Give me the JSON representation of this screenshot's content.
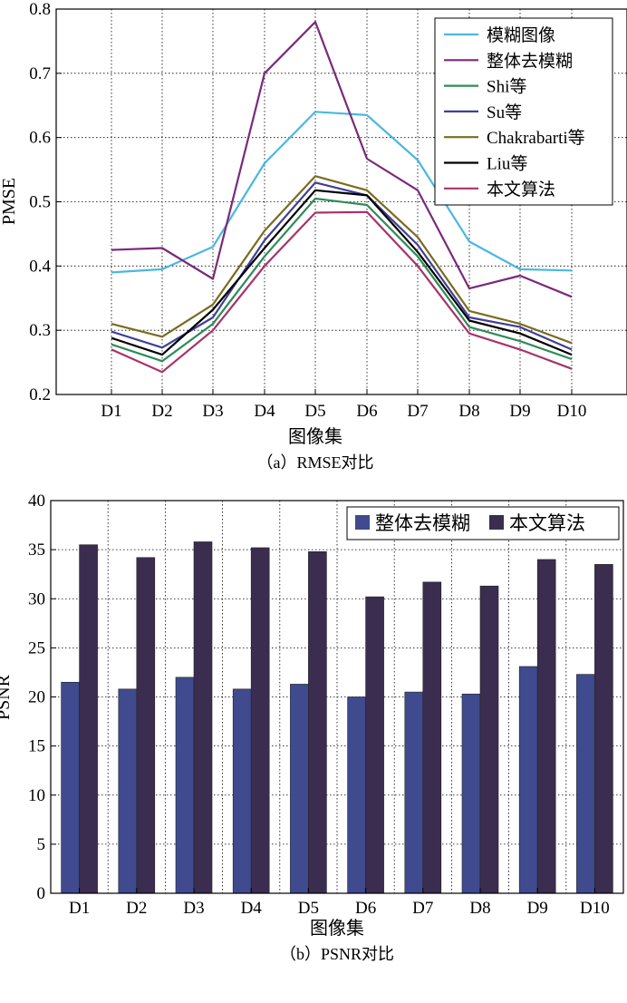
{
  "chart_data": [
    {
      "type": "line",
      "panel_label": "（a）RMSE对比",
      "xlabel": "图像集",
      "ylabel": "PMSE",
      "ylim": [
        0.2,
        0.8
      ],
      "yticks": [
        "0.2",
        "0.3",
        "0.4",
        "0.5",
        "0.6",
        "0.7",
        "0.8"
      ],
      "categories": [
        "D1",
        "D2",
        "D3",
        "D4",
        "D5",
        "D6",
        "D7",
        "D8",
        "D9",
        "D10"
      ],
      "grid": true,
      "legend_position": "top-right",
      "series": [
        {
          "name": "模糊图像",
          "color": "#4ab8e0",
          "values": [
            0.39,
            0.395,
            0.43,
            0.56,
            0.64,
            0.635,
            0.565,
            0.438,
            0.395,
            0.393
          ]
        },
        {
          "name": "整体去模糊",
          "color": "#7a2a7a",
          "values": [
            0.425,
            0.428,
            0.38,
            0.7,
            0.78,
            0.567,
            0.518,
            0.365,
            0.385,
            0.352
          ]
        },
        {
          "name": "Shi等",
          "color": "#2e8b57",
          "values": [
            0.278,
            0.252,
            0.31,
            0.415,
            0.505,
            0.495,
            0.415,
            0.305,
            0.283,
            0.255
          ]
        },
        {
          "name": "Su等",
          "color": "#3f3f9a",
          "values": [
            0.298,
            0.273,
            0.32,
            0.44,
            0.53,
            0.51,
            0.433,
            0.32,
            0.305,
            0.27
          ]
        },
        {
          "name": "Chakrabarti等",
          "color": "#7a6b1e",
          "values": [
            0.31,
            0.29,
            0.34,
            0.455,
            0.54,
            0.518,
            0.445,
            0.33,
            0.31,
            0.28
          ]
        },
        {
          "name": "Liu等",
          "color": "#000000",
          "values": [
            0.288,
            0.262,
            0.332,
            0.428,
            0.518,
            0.51,
            0.422,
            0.315,
            0.295,
            0.262
          ]
        },
        {
          "name": "本文算法",
          "color": "#a8326a",
          "values": [
            0.27,
            0.235,
            0.3,
            0.4,
            0.483,
            0.484,
            0.4,
            0.295,
            0.27,
            0.24
          ]
        }
      ]
    },
    {
      "type": "bar",
      "panel_label": "（b）PSNR对比",
      "xlabel": "图像集",
      "ylabel": "PSNR",
      "ylim": [
        0,
        40
      ],
      "yticks": [
        "0",
        "5",
        "10",
        "15",
        "20",
        "25",
        "30",
        "35",
        "40"
      ],
      "categories": [
        "D1",
        "D2",
        "D3",
        "D4",
        "D5",
        "D6",
        "D7",
        "D8",
        "D9",
        "D10"
      ],
      "grid": true,
      "legend_position": "top-right",
      "series": [
        {
          "name": "整体去模糊",
          "color": "#3f4a8f",
          "values": [
            21.5,
            20.8,
            22.0,
            20.8,
            21.3,
            20.0,
            20.5,
            20.3,
            23.1,
            22.3
          ]
        },
        {
          "name": "本文算法",
          "color": "#3b2d4f",
          "values": [
            35.5,
            34.2,
            35.8,
            35.2,
            34.8,
            30.2,
            31.7,
            31.3,
            34.0,
            33.5
          ]
        }
      ]
    }
  ]
}
